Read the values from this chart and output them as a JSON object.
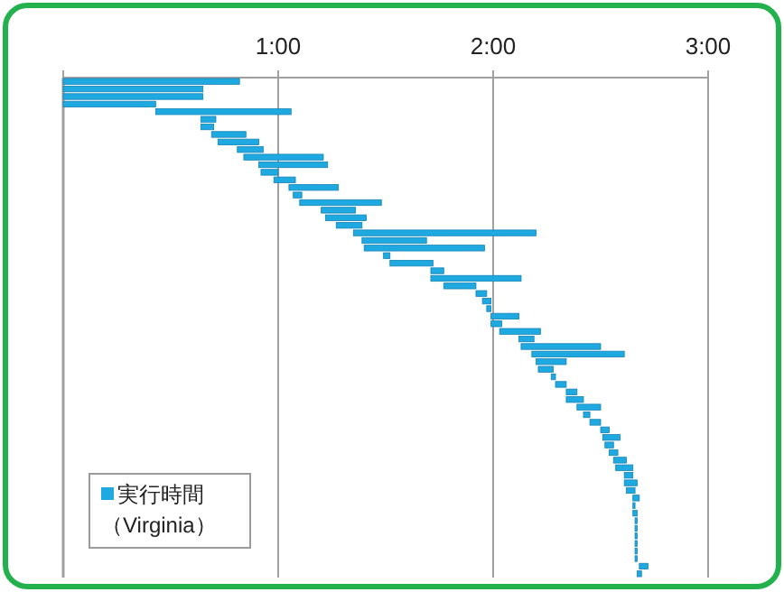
{
  "chart_data": {
    "type": "bar",
    "orientation": "horizontal",
    "categories": [
      null,
      null,
      null,
      null,
      null,
      null,
      null,
      null,
      null,
      null,
      null,
      null,
      null,
      null,
      null,
      null,
      null,
      null,
      null,
      null,
      null,
      null,
      null,
      null,
      null,
      null,
      null,
      null,
      null,
      null,
      null,
      null,
      null,
      null,
      null,
      null,
      null,
      null,
      null,
      null,
      null,
      null,
      null,
      null,
      null,
      null,
      null,
      null,
      null,
      null,
      null,
      null,
      null,
      null,
      null,
      null,
      null,
      null,
      null,
      null,
      null,
      null,
      null,
      null,
      null,
      null
    ],
    "series": [
      {
        "name": "実行時間（Virginia）",
        "color": "#1fa9e1",
        "base": [
          0,
          0,
          0,
          0,
          0.43,
          0.64,
          0.64,
          0.69,
          0.72,
          0.81,
          0.84,
          0.91,
          0.92,
          0.98,
          1.05,
          1.07,
          1.1,
          1.2,
          1.22,
          1.27,
          1.35,
          1.39,
          1.4,
          1.49,
          1.52,
          1.71,
          1.71,
          1.77,
          1.92,
          1.95,
          1.97,
          1.99,
          1.99,
          2.03,
          2.12,
          2.13,
          2.18,
          2.2,
          2.21,
          2.27,
          2.29,
          2.34,
          2.34,
          2.39,
          2.42,
          2.45,
          2.5,
          2.51,
          2.52,
          2.54,
          2.56,
          2.57,
          2.61,
          2.61,
          2.62,
          2.65,
          2.65,
          2.65,
          2.66,
          2.66,
          2.66,
          2.66,
          2.66,
          2.66,
          2.68,
          2.67
        ],
        "values": [
          0.82,
          0.65,
          0.65,
          0.43,
          0.63,
          0.07,
          0.06,
          0.16,
          0.19,
          0.12,
          0.37,
          0.32,
          0.08,
          0.1,
          0.23,
          0.04,
          0.38,
          0.16,
          0.19,
          0.12,
          0.85,
          0.3,
          0.56,
          0.03,
          0.2,
          0.06,
          0.42,
          0.15,
          0.05,
          0.04,
          0.02,
          0.13,
          0.05,
          0.19,
          0.07,
          0.37,
          0.43,
          0.14,
          0.07,
          0.02,
          0.05,
          0.05,
          0.08,
          0.11,
          0.03,
          0.05,
          0.04,
          0.08,
          0.04,
          0.04,
          0.06,
          0.08,
          0.04,
          0.06,
          0.04,
          0.03,
          0.01,
          0.02,
          0.01,
          0.01,
          0.01,
          0.01,
          0.01,
          0.01,
          0.04,
          0.02
        ]
      }
    ],
    "xlim": [
      0,
      3
    ],
    "xticks": [
      {
        "value": 0,
        "label": null
      },
      {
        "value": 1,
        "label": "1:00"
      },
      {
        "value": 2,
        "label": "2:00"
      },
      {
        "value": 3,
        "label": "3:00"
      }
    ],
    "grid": "x",
    "legend": "bottom left"
  }
}
